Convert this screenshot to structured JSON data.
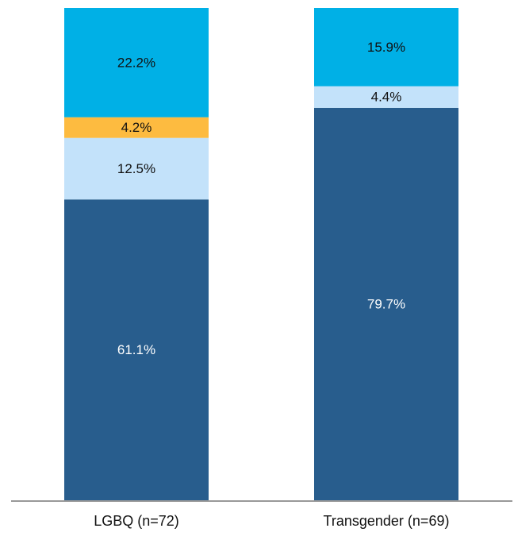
{
  "chart_data": {
    "type": "bar",
    "stacked": true,
    "categories": [
      "LGBQ (n=72)",
      "Transgender (n=69)"
    ],
    "series": [
      {
        "values": [
          61.1,
          79.7
        ],
        "labels": [
          "61.1%",
          "79.7%"
        ],
        "color": "#285D8D",
        "label_color": "#ffffff"
      },
      {
        "values": [
          12.5,
          4.4
        ],
        "labels": [
          "12.5%",
          "4.4%"
        ],
        "color": "#C3E2FA",
        "label_color": "#111111"
      },
      {
        "values": [
          4.2,
          0
        ],
        "labels": [
          "4.2%",
          ""
        ],
        "color": "#FDBB40",
        "label_color": "#111111"
      },
      {
        "values": [
          22.2,
          15.9
        ],
        "labels": [
          "22.2%",
          "15.9%"
        ],
        "color": "#00B0E6",
        "label_color": "#111111"
      }
    ],
    "ylim": [
      0,
      100
    ],
    "grid": false,
    "axis_line_color": "#999999"
  }
}
